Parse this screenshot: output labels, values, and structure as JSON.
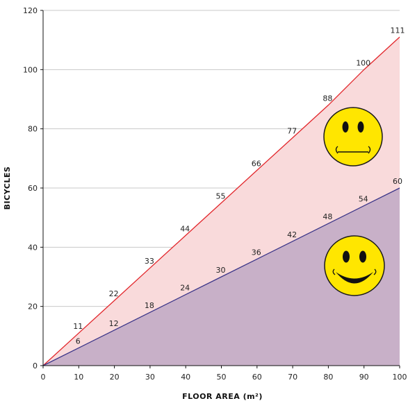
{
  "chart_data": {
    "type": "area",
    "title": "",
    "xlabel": "FLOOR AREA (m²)",
    "ylabel": "BICYCLES",
    "xlim": [
      0,
      100
    ],
    "ylim": [
      0,
      120
    ],
    "x_ticks": [
      0,
      10,
      20,
      30,
      40,
      50,
      60,
      70,
      80,
      90,
      100
    ],
    "y_ticks": [
      0,
      20,
      40,
      60,
      80,
      100,
      120
    ],
    "grid": "horizontal",
    "series": [
      {
        "color": "#e2262b",
        "fill": "#f9dadb",
        "x": [
          0,
          10,
          20,
          30,
          40,
          50,
          60,
          70,
          80,
          90,
          100
        ],
        "y": [
          0,
          11,
          22,
          33,
          44,
          55,
          66,
          77,
          88,
          100,
          111
        ],
        "labels": [
          "",
          "11",
          "22",
          "33",
          "44",
          "55",
          "66",
          "77",
          "88",
          "100",
          "111"
        ]
      },
      {
        "color": "#3b3588",
        "fill": "#c8b0c8",
        "x": [
          0,
          10,
          20,
          30,
          40,
          50,
          60,
          70,
          80,
          90,
          100
        ],
        "y": [
          0,
          6,
          12,
          18,
          24,
          30,
          36,
          42,
          48,
          54,
          60
        ],
        "labels": [
          "",
          "6",
          "12",
          "18",
          "24",
          "30",
          "36",
          "42",
          "48",
          "54",
          "60"
        ]
      }
    ],
    "icons": [
      "neutral-face-icon",
      "smiling-face-icon"
    ]
  }
}
